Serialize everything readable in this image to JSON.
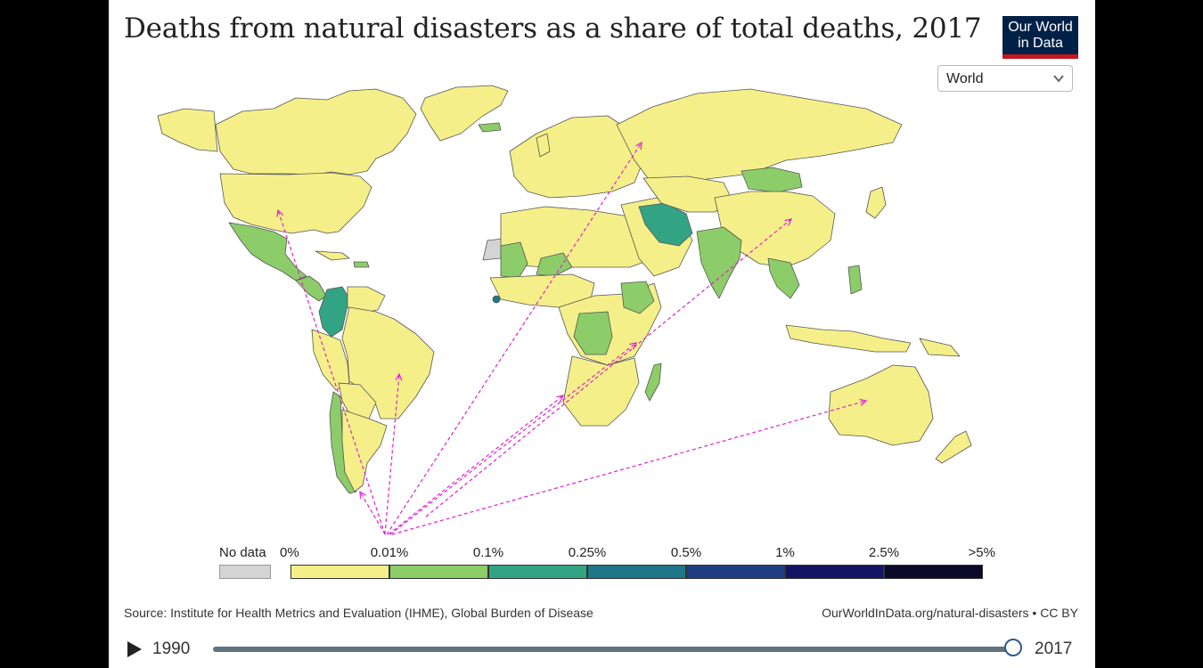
{
  "title": "Deaths from natural disasters as a share of total deaths, 2017",
  "logo": {
    "line1": "Our World",
    "line2": "in Data"
  },
  "region_selector": {
    "selected": "World",
    "icon": "chevron-down-icon"
  },
  "legend": {
    "no_data_label": "No data",
    "no_data_color": "#d4d4d4",
    "bins": [
      {
        "from": "0%",
        "to": "0.01%",
        "color": "#f5ef89"
      },
      {
        "from": "0.01%",
        "to": "0.1%",
        "color": "#8ccd6a"
      },
      {
        "from": "0.1%",
        "to": "0.25%",
        "color": "#33a483"
      },
      {
        "from": "0.25%",
        "to": "0.5%",
        "color": "#1e7788"
      },
      {
        "from": "0.5%",
        "to": "1%",
        "color": "#1f3e82"
      },
      {
        "from": "1%",
        "to": "2.5%",
        "color": "#141465"
      },
      {
        "from": "2.5%",
        "to": ">5%",
        "color": "#0b0a2b"
      }
    ],
    "tick_labels": [
      "0%",
      "0.01%",
      "0.1%",
      "0.25%",
      "0.5%",
      "1%",
      "2.5%",
      ">5%"
    ]
  },
  "map": {
    "colors": {
      "low": "#f5ef89",
      "mid": "#8ccd6a",
      "high": "#33a483",
      "higher": "#1e7788",
      "nodata": "#d4d4d4",
      "annotation_arrows": "#e020d0",
      "borders": "#555555"
    },
    "highlighted_regions": [
      {
        "name": "Iran",
        "bin": "0.1%–0.25%"
      },
      {
        "name": "Colombia",
        "bin": "0.1%–0.25%"
      },
      {
        "name": "Sierra Leone",
        "bin": "0.25%–0.5%"
      },
      {
        "name": "Mongolia",
        "bin": "0.01%–0.1%"
      },
      {
        "name": "India",
        "bin": "0.01%–0.1%"
      },
      {
        "name": "Mexico",
        "bin": "0.01%–0.1%"
      },
      {
        "name": "Madagascar",
        "bin": "0.01%–0.1%"
      },
      {
        "name": "Chile",
        "bin": "0.01%–0.1%"
      },
      {
        "name": "DR Congo",
        "bin": "0.01%–0.1%"
      },
      {
        "name": "Ethiopia",
        "bin": "0.01%–0.1%"
      },
      {
        "name": "Philippines",
        "bin": "0.01%–0.1%"
      }
    ]
  },
  "source": "Source: Institute for Health Metrics and Evaluation (IHME), Global Burden of Disease",
  "credit": "OurWorldInData.org/natural-disasters • CC BY",
  "timeline": {
    "start": "1990",
    "end": "2017",
    "position": 1.0
  }
}
